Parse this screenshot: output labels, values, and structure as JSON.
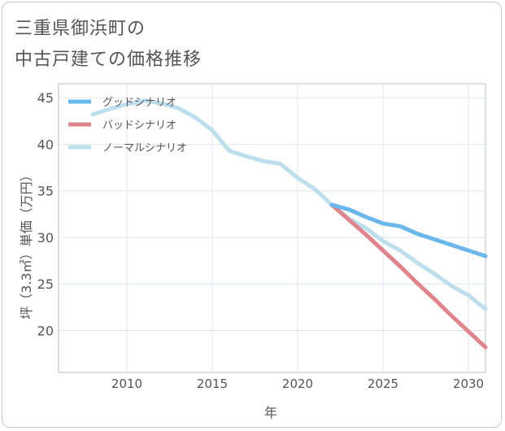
{
  "header": {
    "title_line1": "三重県御浜町の",
    "title_line2": "中古戸建ての価格推移"
  },
  "colors": {
    "good": "#6ab7ec",
    "bad": "#e0848c",
    "normal": "#bcdeed",
    "grid": "#dfe4ec",
    "axis_text": "#555555"
  },
  "chart_data": {
    "type": "line",
    "title": "三重県御浜町の中古戸建ての価格推移",
    "xlabel": "年",
    "ylabel": "坪（3.3㎡）単価（万円）",
    "xlim": [
      2006,
      2031
    ],
    "ylim": [
      15.5,
      46.5
    ],
    "x_ticks": [
      2010,
      2015,
      2020,
      2025,
      2030
    ],
    "y_ticks": [
      20,
      25,
      30,
      35,
      40,
      45
    ],
    "grid": true,
    "legend_position": "top-left",
    "series": [
      {
        "name": "グッドシナリオ",
        "color_key": "good",
        "x": [
          2022,
          2023,
          2024,
          2025,
          2026,
          2027,
          2028,
          2029,
          2030,
          2031
        ],
        "y": [
          33.5,
          33.0,
          32.2,
          31.5,
          31.2,
          30.4,
          29.8,
          29.2,
          28.6,
          28.0
        ]
      },
      {
        "name": "バッドシナリオ",
        "color_key": "bad",
        "x": [
          2022,
          2023,
          2024,
          2025,
          2026,
          2027,
          2028,
          2029,
          2030,
          2031
        ],
        "y": [
          33.5,
          31.9,
          30.3,
          28.6,
          26.9,
          25.1,
          23.4,
          21.6,
          19.9,
          18.2
        ]
      },
      {
        "name": "ノーマルシナリオ",
        "color_key": "normal",
        "x": [
          2008,
          2009,
          2010,
          2011,
          2012,
          2013,
          2014,
          2015,
          2016,
          2017,
          2018,
          2019,
          2020,
          2021,
          2022,
          2023,
          2024,
          2025,
          2026,
          2027,
          2028,
          2029,
          2030,
          2031
        ],
        "y": [
          43.2,
          43.8,
          44.3,
          44.7,
          44.4,
          43.9,
          42.9,
          41.5,
          39.3,
          38.7,
          38.2,
          37.9,
          36.4,
          35.2,
          33.5,
          32.0,
          31.0,
          29.6,
          28.6,
          27.3,
          26.1,
          24.8,
          23.8,
          22.3
        ]
      }
    ]
  }
}
